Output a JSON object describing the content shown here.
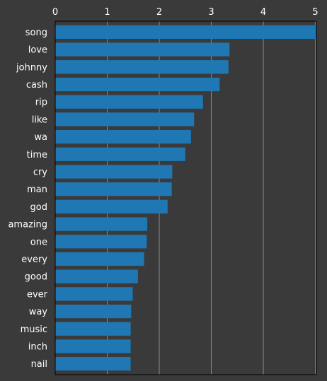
{
  "chart_data": {
    "type": "bar",
    "orientation": "horizontal",
    "categories": [
      "song",
      "love",
      "johnny",
      "cash",
      "rip",
      "like",
      "wa",
      "time",
      "cry",
      "man",
      "god",
      "amazing",
      "one",
      "every",
      "good",
      "ever",
      "way",
      "music",
      "inch",
      "nail"
    ],
    "values": [
      5.02,
      3.35,
      3.33,
      3.16,
      2.84,
      2.67,
      2.61,
      2.5,
      2.25,
      2.24,
      2.16,
      1.77,
      1.76,
      1.71,
      1.59,
      1.49,
      1.46,
      1.45,
      1.45,
      1.45
    ],
    "xlim": [
      0,
      5.02
    ],
    "xticks": [
      "0",
      "1",
      "2",
      "3",
      "4",
      "5"
    ],
    "tick_position": "top",
    "grid": true,
    "bar_color": "#1f77b4",
    "background_color": "#3a3a3a",
    "text_color": "#ffffff",
    "title": "",
    "xlabel": "",
    "ylabel": ""
  }
}
